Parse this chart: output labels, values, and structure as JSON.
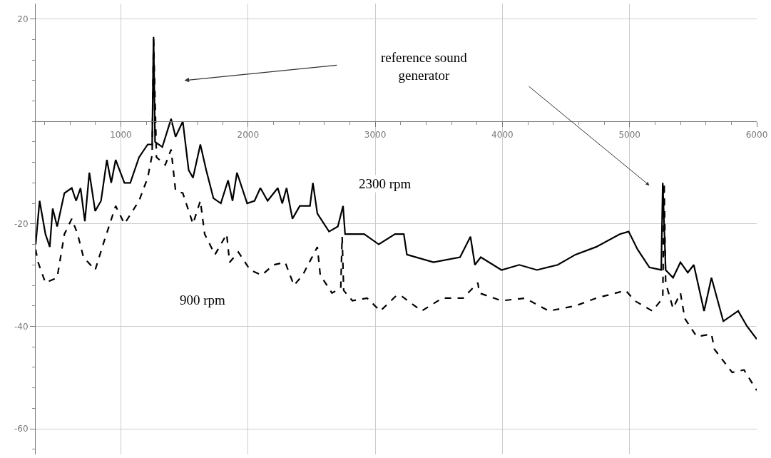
{
  "chart_data": {
    "type": "line",
    "xlim": [
      330,
      6000
    ],
    "ylim": [
      -65,
      23
    ],
    "xticks": [
      1000,
      2000,
      3000,
      4000,
      5000,
      6000
    ],
    "yticks": [
      20,
      -20,
      -40,
      -60
    ],
    "grid": true,
    "marker": "none",
    "annotations": [
      "reference sound generator",
      "2300 rpm",
      "900 rpm"
    ],
    "series": [
      {
        "color": "#000000",
        "line_style": "solid",
        "x": [
          330,
          361,
          407,
          441,
          464,
          499,
          556,
          614,
          648,
          683,
          717,
          752,
          798,
          844,
          890,
          924,
          959,
          1028,
          1074,
          1143,
          1211,
          1246,
          1257,
          1269,
          1326,
          1395,
          1430,
          1487,
          1533,
          1567,
          1625,
          1671,
          1728,
          1786,
          1843,
          1878,
          1913,
          1993,
          2051,
          2097,
          2154,
          2234,
          2269,
          2303,
          2349,
          2407,
          2487,
          2510,
          2545,
          2637,
          2706,
          2747,
          2763,
          2913,
          3028,
          3156,
          3225,
          3249,
          3458,
          3667,
          3749,
          3784,
          3830,
          3993,
          4133,
          4272,
          4435,
          4575,
          4737,
          4923,
          4993,
          5063,
          5156,
          5249,
          5261,
          5284,
          5342,
          5400,
          5458,
          5505,
          5586,
          5644,
          5737,
          5854,
          5924,
          6000
        ],
        "values": [
          -24,
          -15.5,
          -22,
          -24.5,
          -17,
          -20.5,
          -14,
          -13,
          -15.5,
          -13,
          -19.5,
          -10,
          -17.5,
          -15.5,
          -7.5,
          -12,
          -7.5,
          -12,
          -12,
          -7,
          -4.5,
          -4.5,
          16.5,
          -4,
          -5,
          0.5,
          -3,
          0,
          -9.5,
          -11,
          -4.5,
          -9.5,
          -15,
          -16,
          -11.5,
          -15.5,
          -10,
          -16,
          -15.5,
          -13,
          -15.5,
          -13,
          -16,
          -13,
          -19,
          -16.5,
          -16.5,
          -12,
          -18,
          -21.5,
          -20.5,
          -16.5,
          -22,
          -22,
          -24,
          -22,
          -22,
          -26,
          -27.5,
          -26.5,
          -22.5,
          -28,
          -26.5,
          -29,
          -28,
          -29,
          -28,
          -26,
          -24.5,
          -22,
          -21.5,
          -25,
          -28.5,
          -29,
          -12,
          -29,
          -30.5,
          -27.5,
          -29.5,
          -28,
          -37,
          -30.5,
          -39,
          -37,
          -40,
          -42.5
        ]
      },
      {
        "color": "#000000",
        "line_style": "dashed",
        "x": [
          330,
          349,
          407,
          499,
          556,
          614,
          660,
          706,
          798,
          867,
          959,
          1028,
          1143,
          1211,
          1246,
          1257,
          1280,
          1349,
          1395,
          1430,
          1487,
          1567,
          1625,
          1659,
          1740,
          1832,
          1855,
          1924,
          2016,
          2108,
          2200,
          2292,
          2361,
          2430,
          2545,
          2568,
          2660,
          2729,
          2740,
          2752,
          2821,
          2936,
          3040,
          3166,
          3202,
          3365,
          3528,
          3691,
          3807,
          3819,
          3993,
          4179,
          4365,
          4575,
          4737,
          4970,
          5040,
          5179,
          5261,
          5272,
          5284,
          5342,
          5400,
          5435,
          5528,
          5644,
          5668,
          5807,
          5900,
          6000
        ],
        "values": [
          -25,
          -27.5,
          -31.5,
          -30.5,
          -22,
          -19,
          -22,
          -26.5,
          -29,
          -23.5,
          -16.5,
          -20,
          -15.5,
          -11,
          -6.5,
          16.5,
          -7,
          -8.5,
          -5.5,
          -13.5,
          -14,
          -20,
          -15.5,
          -22,
          -26,
          -22,
          -27.5,
          -25.5,
          -29,
          -30,
          -28,
          -27.5,
          -32,
          -30,
          -24.5,
          -30,
          -33.5,
          -32.5,
          -22.5,
          -33,
          -35,
          -34.5,
          -37,
          -34,
          -34,
          -37,
          -34.5,
          -34.5,
          -31.5,
          -33.5,
          -35,
          -34.5,
          -37,
          -36,
          -34.5,
          -33,
          -35,
          -37,
          -34.5,
          -12,
          -31.5,
          -36.5,
          -33.5,
          -38.5,
          -42,
          -41.5,
          -44.5,
          -49,
          -48.5,
          -52.5
        ]
      }
    ]
  }
}
